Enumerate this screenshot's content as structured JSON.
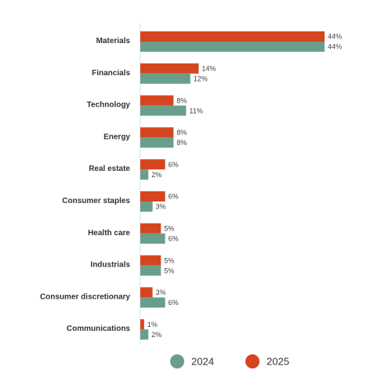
{
  "chart_data": {
    "type": "bar",
    "orientation": "horizontal",
    "categories": [
      "Materials",
      "Financials",
      "Technology",
      "Energy",
      "Real estate",
      "Consumer staples",
      "Health care",
      "Industrials",
      "Consumer discretionary",
      "Communications"
    ],
    "series": [
      {
        "name": "2025",
        "color": "#d4461f",
        "values": [
          44,
          14,
          8,
          8,
          6,
          6,
          5,
          5,
          3,
          1
        ]
      },
      {
        "name": "2024",
        "color": "#6a9e8c",
        "values": [
          44,
          12,
          11,
          8,
          2,
          3,
          6,
          5,
          6,
          2
        ]
      }
    ],
    "value_suffix": "%",
    "xlim": [
      0,
      45
    ],
    "grid": false,
    "legend_position": "bottom",
    "legend_order": [
      "2024",
      "2025"
    ]
  }
}
